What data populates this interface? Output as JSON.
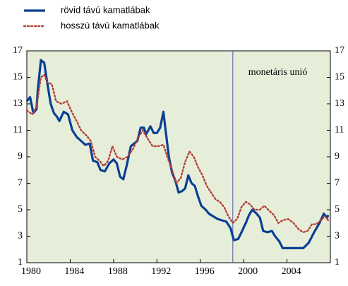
{
  "chart_data": {
    "type": "line",
    "series": [
      {
        "name": "rövid távú kamatlábak",
        "color": "#0a3f94",
        "x": [
          1980,
          1980.3,
          1980.6,
          1980.9,
          1981.0,
          1981.3,
          1981.6,
          1981.9,
          1982.2,
          1982.5,
          1982.8,
          1983.0,
          1983.4,
          1983.8,
          1984.2,
          1984.6,
          1985,
          1985.4,
          1985.8,
          1986.1,
          1986.5,
          1986.8,
          1987.2,
          1987.6,
          1988,
          1988.3,
          1988.6,
          1988.9,
          1989.2,
          1989.6,
          1989.9,
          1990.2,
          1990.5,
          1990.8,
          1991.0,
          1991.4,
          1991.7,
          1992,
          1992.3,
          1992.6,
          1992.8,
          1993.1,
          1993.4,
          1993.7,
          1994,
          1994.3,
          1994.6,
          1994.9,
          1995.2,
          1995.5,
          1995.8,
          1996.1,
          1996.5,
          1996.8,
          1997.2,
          1997.6,
          1998,
          1998.4,
          1998.8,
          1999.1,
          1999.5,
          1999.8,
          2000.2,
          2000.5,
          2000.8,
          2001.2,
          2001.5,
          2001.8,
          2002.2,
          2002.6,
          2002.9,
          2003.3,
          2003.6,
          2004,
          2004.5,
          2005,
          2005.5,
          2006,
          2006.5,
          2007,
          2007.4,
          2007.7,
          2007.8
        ],
        "values": [
          13.2,
          13.5,
          12.3,
          12.6,
          14,
          16.3,
          16.1,
          14.5,
          13,
          12.3,
          12.0,
          11.7,
          12.4,
          12.2,
          11,
          10.5,
          10.2,
          9.9,
          10,
          8.7,
          8.6,
          8,
          7.9,
          8.5,
          8.8,
          8.5,
          7.5,
          7.3,
          8.3,
          9.8,
          10,
          10.2,
          11.2,
          11.2,
          10.7,
          11.3,
          10.8,
          10.8,
          11.2,
          12.4,
          11,
          9,
          7.8,
          7.2,
          6.3,
          6.4,
          6.6,
          7.6,
          7.0,
          6.8,
          6.0,
          5.3,
          5.0,
          4.7,
          4.5,
          4.3,
          4.2,
          4.1,
          3.6,
          2.7,
          2.8,
          3.3,
          4.0,
          4.6,
          5.0,
          4.7,
          4.4,
          3.4,
          3.3,
          3.4,
          3.0,
          2.6,
          2.1,
          2.1,
          2.1,
          2.1,
          2.1,
          2.5,
          3.3,
          4.0,
          4.7,
          4.4,
          4.6
        ]
      },
      {
        "name": "hosszú távú kamatlábak",
        "color": "#b5413a",
        "x": [
          1980,
          1980.5,
          1980.9,
          1981.3,
          1981.6,
          1981.9,
          1982.3,
          1982.7,
          1983.2,
          1983.7,
          1984.2,
          1984.6,
          1985,
          1985.5,
          1985.9,
          1986.3,
          1986.7,
          1987.1,
          1987.5,
          1987.9,
          1988.3,
          1988.8,
          1989.3,
          1989.8,
          1990.3,
          1990.7,
          1991.2,
          1991.6,
          1992.1,
          1992.6,
          1993,
          1993.4,
          1993.8,
          1994.2,
          1994.6,
          1995,
          1995.4,
          1995.8,
          1996.2,
          1996.6,
          1997,
          1997.4,
          1997.8,
          1998.2,
          1998.6,
          1999,
          1999.4,
          1999.8,
          2000.2,
          2000.6,
          2001,
          2001.5,
          2001.9,
          2002.4,
          2002.8,
          2003.2,
          2003.6,
          2004.1,
          2004.6,
          2005.1,
          2005.5,
          2005.9,
          2006.3,
          2006.7,
          2007.1,
          2007.5,
          2007.8
        ],
        "values": [
          12.5,
          12.2,
          12.8,
          15.0,
          15.2,
          14.6,
          14.5,
          13.2,
          13.0,
          13.2,
          12.3,
          11.7,
          11.0,
          10.6,
          10.2,
          9.0,
          8.7,
          8.3,
          8.7,
          9.8,
          9.0,
          8.8,
          9.0,
          9.6,
          10.5,
          11.0,
          10.3,
          9.8,
          9.8,
          9.9,
          8.9,
          8.0,
          7.0,
          7.4,
          8.6,
          9.4,
          9.0,
          8.2,
          7.6,
          6.8,
          6.3,
          5.8,
          5.6,
          5.2,
          4.5,
          4.0,
          4.3,
          5.2,
          5.6,
          5.4,
          5.0,
          5.0,
          5.3,
          4.9,
          4.6,
          4.0,
          4.2,
          4.3,
          4.0,
          3.5,
          3.3,
          3.4,
          3.9,
          3.9,
          4.2,
          4.5,
          4.2
        ]
      }
    ],
    "xlim": [
      1980,
      2008
    ],
    "xticks": [
      1980,
      1984,
      1988,
      1992,
      1996,
      2000,
      2004
    ],
    "ylim": [
      1,
      17
    ],
    "yticks": [
      1,
      3,
      5,
      7,
      9,
      11,
      13,
      15,
      17
    ],
    "y2lim": [
      1,
      17
    ],
    "y2ticks": [
      1,
      3,
      5,
      7,
      9,
      11,
      13,
      15,
      17
    ],
    "annotation": {
      "text": "monetáris unió",
      "x": 1999
    },
    "background": "#e6eed9"
  }
}
